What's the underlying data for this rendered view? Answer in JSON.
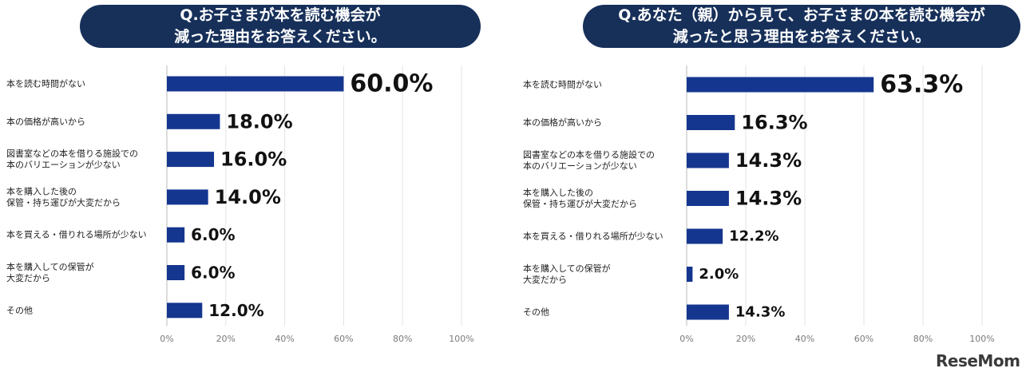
{
  "logo": "ReseMom",
  "chart_data": [
    {
      "type": "bar",
      "orientation": "horizontal",
      "title_lines": [
        "Q.お子さまが本を読む機会が",
        "減った理由をお答えください。"
      ],
      "categories": [
        [
          "本を読む時間がない"
        ],
        [
          "本の価格が高いから"
        ],
        [
          "図書室などの本を借りる施設での",
          "本のバリエーションが少ない"
        ],
        [
          "本を購入した後の",
          "保管・持ち運びが大変だから"
        ],
        [
          "本を買える・借りれる場所が少ない"
        ],
        [
          "本を購入しての保管が",
          "大変だから"
        ],
        [
          "その他"
        ]
      ],
      "values": [
        60.0,
        18.0,
        16.0,
        14.0,
        6.0,
        6.0,
        12.0
      ],
      "value_labels": [
        "60.0%",
        "18.0%",
        "16.0%",
        "14.0%",
        "6.0%",
        "6.0%",
        "12.0%"
      ],
      "xlim": [
        0,
        100
      ],
      "ticks": [
        "0%",
        "20%",
        "40%",
        "60%",
        "80%",
        "100%"
      ],
      "bar_color": "#15368f",
      "grid": true
    },
    {
      "type": "bar",
      "orientation": "horizontal",
      "title_lines": [
        "Q.あなた（親）から見て、お子さまの本を読む機会が",
        "減ったと思う理由をお答えください。"
      ],
      "categories": [
        [
          "本を読む時間がない"
        ],
        [
          "本の価格が高いから"
        ],
        [
          "図書室などの本を借りる施設での",
          "本のバリエーションが少ない"
        ],
        [
          "本を購入した後の",
          "保管・持ち運びが大変だから"
        ],
        [
          "本を買える・借りれる場所が少ない"
        ],
        [
          "本を購入しての保管が",
          "大変だから"
        ],
        [
          "その他"
        ]
      ],
      "values": [
        63.3,
        16.3,
        14.3,
        14.3,
        12.2,
        2.0,
        14.3
      ],
      "value_labels": [
        "63.3%",
        "16.3%",
        "14.3%",
        "14.3%",
        "12.2%",
        "2.0%",
        "14.3%"
      ],
      "xlim": [
        0,
        100
      ],
      "ticks": [
        "0%",
        "20%",
        "40%",
        "60%",
        "80%",
        "100%"
      ],
      "bar_color": "#15368f",
      "grid": true
    }
  ]
}
